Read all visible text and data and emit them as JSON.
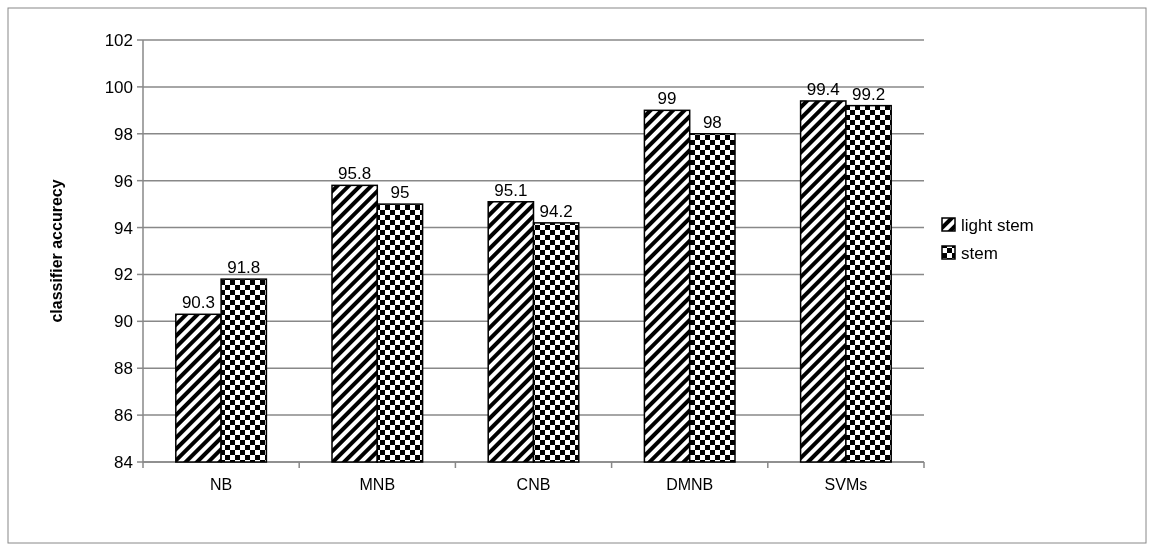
{
  "chart_data": {
    "type": "bar",
    "ylabel": "classifier accurecy",
    "categories": [
      "NB",
      "MNB",
      "CNB",
      "DMNB",
      "SVMs"
    ],
    "series": [
      {
        "name": "light stem",
        "color": "#000000",
        "values": [
          90.3,
          95.8,
          95.1,
          99,
          99.4
        ]
      },
      {
        "name": "stem",
        "color": "#000000",
        "values": [
          91.8,
          95,
          94.2,
          98,
          99.2
        ]
      }
    ],
    "ylim": [
      84,
      102
    ],
    "yticks": [
      84,
      86,
      88,
      90,
      92,
      94,
      96,
      98,
      100,
      102
    ],
    "grid": "y",
    "legend": "right",
    "data_labels": true
  }
}
